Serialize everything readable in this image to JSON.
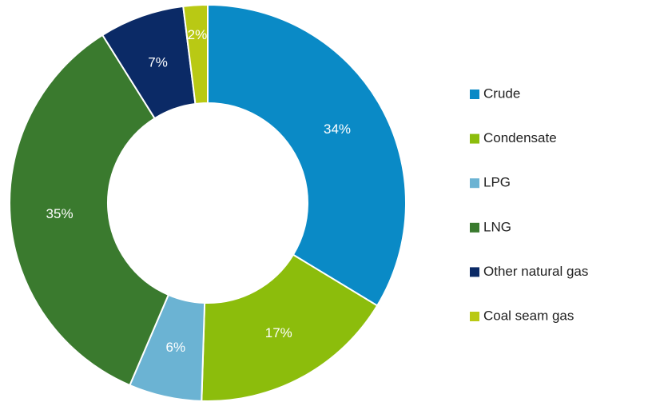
{
  "chart_data": {
    "type": "donut",
    "categories": [
      "Crude",
      "Condensate",
      "LPG",
      "LNG",
      "Other natural gas",
      "Coal seam gas"
    ],
    "values": [
      34,
      17,
      6,
      35,
      7,
      2
    ],
    "value_labels": [
      "34%",
      "17%",
      "6%",
      "35%",
      "7%",
      "2%"
    ],
    "colors": [
      "#0a8ac6",
      "#8cbd0c",
      "#6bb3d3",
      "#3a7a2e",
      "#0b2a66",
      "#b9c914"
    ],
    "legend": "right"
  }
}
